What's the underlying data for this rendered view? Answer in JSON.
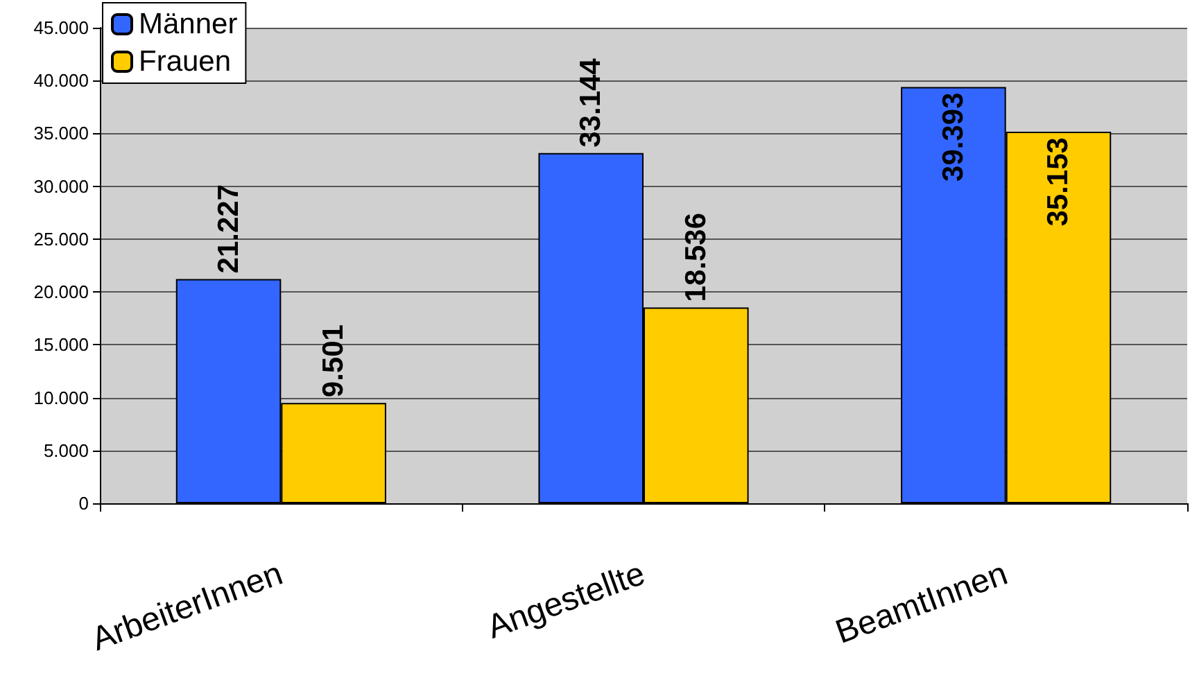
{
  "chart_data": {
    "type": "bar",
    "categories": [
      "ArbeiterInnen",
      "Angestellte",
      "BeamtInnen"
    ],
    "series": [
      {
        "name": "Männer",
        "color": "#3366ff",
        "values": [
          21227,
          33144,
          39393
        ],
        "value_labels": [
          "21.227",
          "33.144",
          "39.393"
        ]
      },
      {
        "name": "Frauen",
        "color": "#ffcc00",
        "values": [
          9501,
          18536,
          35153
        ],
        "value_labels": [
          "9.501",
          "18.536",
          "35.153"
        ]
      }
    ],
    "ylim": [
      0,
      45000
    ],
    "yticks": [
      {
        "value": 0,
        "label": "0"
      },
      {
        "value": 5000,
        "label": "5.000"
      },
      {
        "value": 10000,
        "label": "10.000"
      },
      {
        "value": 15000,
        "label": "15.000"
      },
      {
        "value": 20000,
        "label": "20.000"
      },
      {
        "value": 25000,
        "label": "25.000"
      },
      {
        "value": 30000,
        "label": "30.000"
      },
      {
        "value": 35000,
        "label": "35.000"
      },
      {
        "value": 40000,
        "label": "40.000"
      },
      {
        "value": 45000,
        "label": "45.000"
      }
    ],
    "grid": "y",
    "legend": "top left"
  }
}
